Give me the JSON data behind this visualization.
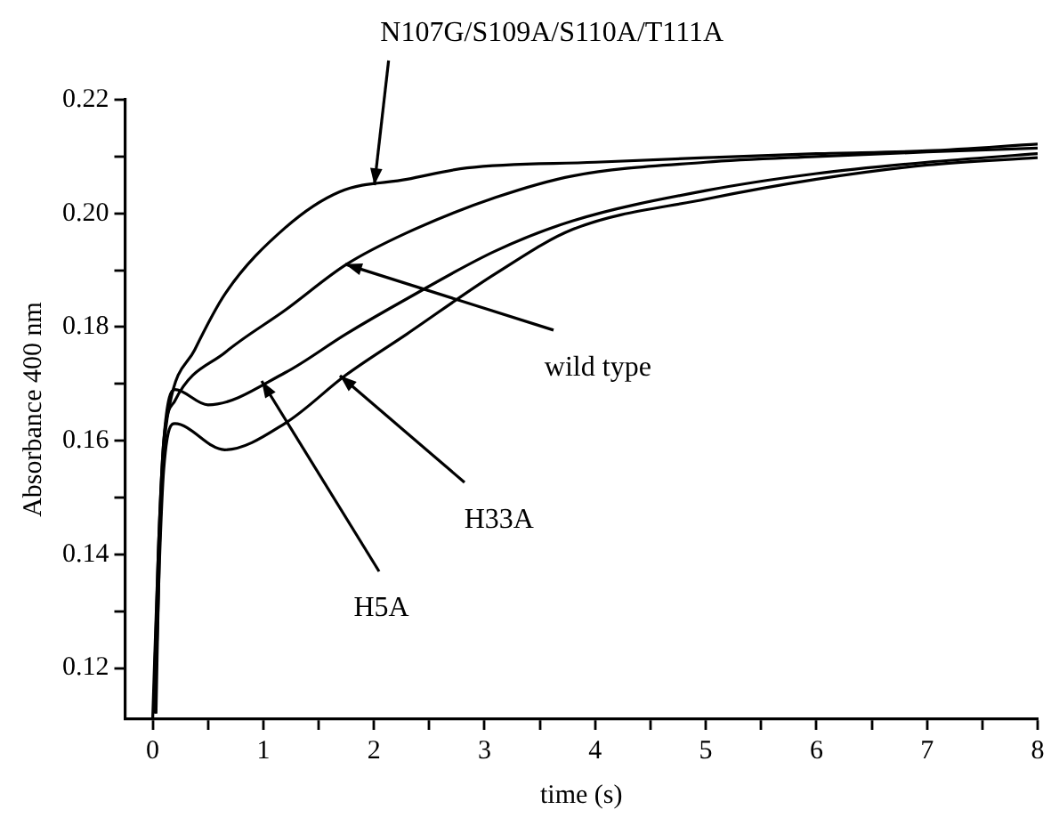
{
  "chart_data": {
    "type": "line",
    "xlabel": "time (s)",
    "ylabel": "Absorbance 400 nm",
    "xlim": [
      -0.25,
      8
    ],
    "ylim": [
      0.111,
      0.22
    ],
    "xticks": [
      0,
      {
        "value": 0.5,
        "label": null
      },
      1,
      {
        "value": 1.5,
        "label": null
      },
      2,
      {
        "value": 2.5,
        "label": null
      },
      3,
      {
        "value": 3.5,
        "label": null
      },
      4,
      {
        "value": 4.5,
        "label": null
      },
      5,
      {
        "value": 5.5,
        "label": null
      },
      6,
      {
        "value": 6.5,
        "label": null
      },
      7,
      {
        "value": 7.5,
        "label": null
      },
      8
    ],
    "yticks": [
      0.12,
      {
        "value": 0.13,
        "label": null
      },
      0.14,
      {
        "value": 0.15,
        "label": null
      },
      0.16,
      {
        "value": 0.17,
        "label": null
      },
      0.18,
      {
        "value": 0.19,
        "label": null
      },
      {
        "value": 0.2,
        "label": "0.20"
      },
      {
        "value": 0.21,
        "label": null
      },
      0.22
    ],
    "grid": false,
    "legend": false,
    "marker": "none",
    "line_style": "solid",
    "series": [
      {
        "color": "#000000",
        "x": [
          0.03,
          0.06,
          0.1,
          0.15,
          0.38,
          0.66,
          1.2,
          1.69,
          2.3,
          2.84,
          4,
          5,
          6,
          7,
          8
        ],
        "values": [
          0.112,
          0.14,
          0.158,
          0.166,
          0.176,
          0.186,
          0.1975,
          0.2038,
          0.206,
          0.208,
          0.209,
          0.2098,
          0.2105,
          0.211,
          0.2122
        ]
      },
      {
        "color": "#000000",
        "x": [
          0,
          0.05,
          0.1,
          0.2,
          0.66,
          1.2,
          1.75,
          2.3,
          3.1,
          3.8,
          5,
          6,
          7,
          8
        ],
        "values": [
          0.111,
          0.14,
          0.16,
          0.167,
          0.1756,
          0.183,
          0.191,
          0.1966,
          0.2028,
          0.2066,
          0.209,
          0.21,
          0.2108,
          0.2115
        ]
      },
      {
        "color": "#000000",
        "x": [
          0.01,
          0.05,
          0.1,
          0.2,
          0.5,
          1.2,
          1.75,
          2.3,
          3.1,
          3.8,
          5,
          6,
          7,
          8
        ],
        "values": [
          0.113,
          0.14,
          0.16,
          0.169,
          0.1663,
          0.172,
          0.1788,
          0.185,
          0.1934,
          0.1987,
          0.204,
          0.207,
          0.209,
          0.2105
        ]
      },
      {
        "color": "#000000",
        "x": [
          0.02,
          0.06,
          0.1,
          0.2,
          0.65,
          1.2,
          1.75,
          2.3,
          3.1,
          3.8,
          5,
          6,
          7,
          8
        ],
        "values": [
          0.112,
          0.138,
          0.155,
          0.163,
          0.1584,
          0.1631,
          0.1716,
          0.1788,
          0.1894,
          0.1972,
          0.2025,
          0.206,
          0.2085,
          0.2098
        ]
      }
    ],
    "annotations": [
      {
        "text": "N107G/S109A/S110A/T111A",
        "x": 2.0,
        "y": 0.205
      },
      {
        "text": "wild type",
        "x": 1.74,
        "y": 0.191
      },
      {
        "text": "H33A",
        "x": 1.69,
        "y": 0.1716
      },
      {
        "text": "H5A",
        "x": 0.98,
        "y": 0.1706
      }
    ]
  }
}
